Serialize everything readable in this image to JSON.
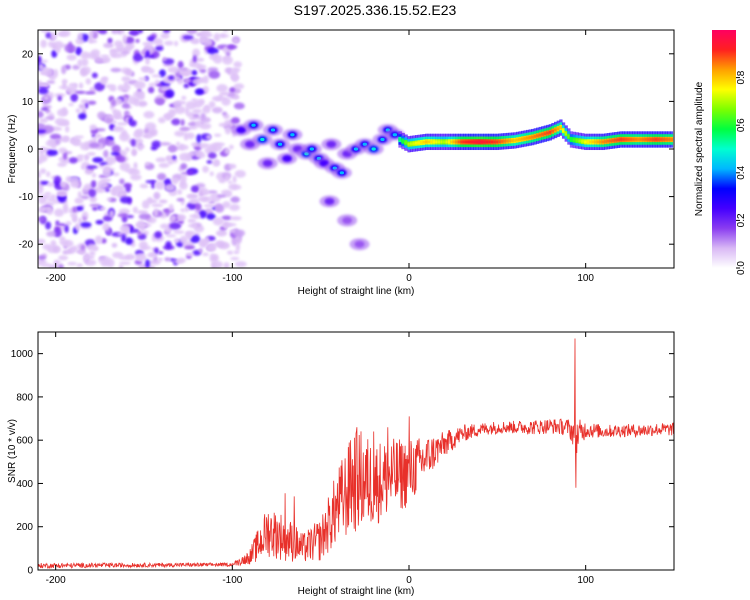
{
  "title": "S197.2025.336.15.52.E23",
  "chart_data": [
    {
      "type": "heatmap",
      "xlabel": "Height of straight line (km)",
      "ylabel": "Frequency (Hz)",
      "xlim": [
        -210,
        150
      ],
      "ylim": [
        -25,
        25
      ],
      "x_ticks": [
        -200,
        -100,
        0,
        100
      ],
      "y_ticks": [
        -20,
        -10,
        0,
        10,
        20
      ],
      "x_tick_labels": [
        "-200",
        "-100",
        "0",
        "100"
      ],
      "y_tick_labels": [
        "-20",
        "-10",
        "0",
        "10",
        "20"
      ],
      "colorbar": {
        "label": "Normalized spectral amplitude",
        "range": [
          0,
          1
        ],
        "ticks": [
          0,
          0.2,
          0.4,
          0.6,
          0.8
        ],
        "tick_labels": [
          "0.0",
          "0.2",
          "0.4",
          "0.6",
          "0.8"
        ],
        "colormap": [
          "#ffffff",
          "#d9b8f5",
          "#8a3df0",
          "#4400ff",
          "#0000ff",
          "#00b7ff",
          "#00ffd0",
          "#00ff40",
          "#7dff00",
          "#ffff00",
          "#ffa000",
          "#ff2020",
          "#ff0060"
        ]
      },
      "features": {
        "noise_region_x": [
          -210,
          -95
        ],
        "noise_freq_range": [
          -25,
          25
        ],
        "transition_blobs": [
          {
            "x": -95,
            "f": 4,
            "a": 0.25
          },
          {
            "x": -90,
            "f": 1,
            "a": 0.2
          },
          {
            "x": -88,
            "f": 5,
            "a": 0.3
          },
          {
            "x": -83,
            "f": 2,
            "a": 0.35
          },
          {
            "x": -80,
            "f": -3,
            "a": 0.2
          },
          {
            "x": -77,
            "f": 4,
            "a": 0.3
          },
          {
            "x": -73,
            "f": 1,
            "a": 0.3
          },
          {
            "x": -69,
            "f": -2,
            "a": 0.25
          },
          {
            "x": -66,
            "f": 3,
            "a": 0.3
          },
          {
            "x": -63,
            "f": 0,
            "a": 0.2
          },
          {
            "x": -58,
            "f": -1,
            "a": 0.35
          },
          {
            "x": -55,
            "f": 0,
            "a": 0.3
          },
          {
            "x": -51,
            "f": -2,
            "a": 0.3
          },
          {
            "x": -48,
            "f": -3,
            "a": 0.25
          },
          {
            "x": -44,
            "f": 1,
            "a": 0.2
          },
          {
            "x": -42,
            "f": -4,
            "a": 0.3
          },
          {
            "x": -38,
            "f": -5,
            "a": 0.3
          },
          {
            "x": -35,
            "f": -1,
            "a": 0.2
          },
          {
            "x": -30,
            "f": 0,
            "a": 0.3
          },
          {
            "x": -25,
            "f": 1,
            "a": 0.3
          },
          {
            "x": -20,
            "f": 0,
            "a": 0.35
          },
          {
            "x": -15,
            "f": 2,
            "a": 0.3
          },
          {
            "x": -12,
            "f": 4,
            "a": 0.3
          },
          {
            "x": -8,
            "f": 3,
            "a": 0.3
          },
          {
            "x": -45,
            "f": -11,
            "a": 0.2
          },
          {
            "x": -35,
            "f": -15,
            "a": 0.15
          },
          {
            "x": -28,
            "f": -20,
            "a": 0.15
          }
        ],
        "stable_line": [
          {
            "x": -5,
            "f": 2,
            "a": 0.55
          },
          {
            "x": 0,
            "f": 1,
            "a": 0.7
          },
          {
            "x": 10,
            "f": 1.5,
            "a": 0.8
          },
          {
            "x": 20,
            "f": 1.5,
            "a": 0.7
          },
          {
            "x": 30,
            "f": 1.5,
            "a": 0.9
          },
          {
            "x": 40,
            "f": 1.5,
            "a": 0.95
          },
          {
            "x": 50,
            "f": 1.5,
            "a": 0.9
          },
          {
            "x": 60,
            "f": 1.8,
            "a": 0.8
          },
          {
            "x": 70,
            "f": 2.5,
            "a": 0.85
          },
          {
            "x": 80,
            "f": 3.5,
            "a": 0.9
          },
          {
            "x": 86,
            "f": 4.5,
            "a": 0.8
          },
          {
            "x": 92,
            "f": 2,
            "a": 0.6
          },
          {
            "x": 100,
            "f": 1.5,
            "a": 0.75
          },
          {
            "x": 110,
            "f": 1.5,
            "a": 0.85
          },
          {
            "x": 120,
            "f": 2,
            "a": 0.9
          },
          {
            "x": 130,
            "f": 2,
            "a": 0.85
          },
          {
            "x": 140,
            "f": 2,
            "a": 0.9
          },
          {
            "x": 150,
            "f": 2,
            "a": 0.85
          }
        ]
      }
    },
    {
      "type": "line",
      "xlabel": "Height of straight line (km)",
      "ylabel": "SNR (10 * v/v)",
      "xlim": [
        -210,
        150
      ],
      "ylim": [
        0,
        1100
      ],
      "x_ticks": [
        -200,
        -100,
        0,
        100
      ],
      "y_ticks": [
        0,
        200,
        400,
        600,
        800,
        1000
      ],
      "x_tick_labels": [
        "-200",
        "-100",
        "0",
        "100"
      ],
      "y_tick_labels": [
        "0",
        "200",
        "400",
        "600",
        "800",
        "1000"
      ],
      "series": [
        {
          "name": "SNR",
          "color": "#e8302a",
          "envelope_x": [
            -210,
            -100,
            -90,
            -80,
            -70,
            -60,
            -50,
            -40,
            -30,
            -20,
            -10,
            0,
            10,
            20,
            30,
            40,
            50,
            60,
            70,
            80,
            90,
            95,
            100,
            110,
            120,
            130,
            140,
            150
          ],
          "envelope_y": [
            20,
            25,
            60,
            180,
            150,
            100,
            140,
            300,
            420,
            400,
            430,
            450,
            520,
            580,
            630,
            650,
            660,
            660,
            660,
            665,
            660,
            620,
            650,
            640,
            645,
            645,
            650,
            650
          ],
          "envelope_amp": [
            15,
            10,
            40,
            120,
            110,
            70,
            100,
            180,
            250,
            200,
            180,
            160,
            100,
            60,
            40,
            30,
            30,
            30,
            35,
            35,
            40,
            80,
            40,
            30,
            30,
            30,
            30,
            30
          ],
          "spikes": [
            {
              "x": -70,
              "y": 355
            },
            {
              "x": -65,
              "y": 340
            },
            {
              "x": -33,
              "y": 600
            },
            {
              "x": -30,
              "y": 630
            },
            {
              "x": -20,
              "y": 640
            },
            {
              "x": -12,
              "y": 660
            },
            {
              "x": 0,
              "y": 710
            },
            {
              "x": 94,
              "y": 1070
            },
            {
              "x": 94.5,
              "y": 380
            }
          ]
        }
      ]
    }
  ]
}
